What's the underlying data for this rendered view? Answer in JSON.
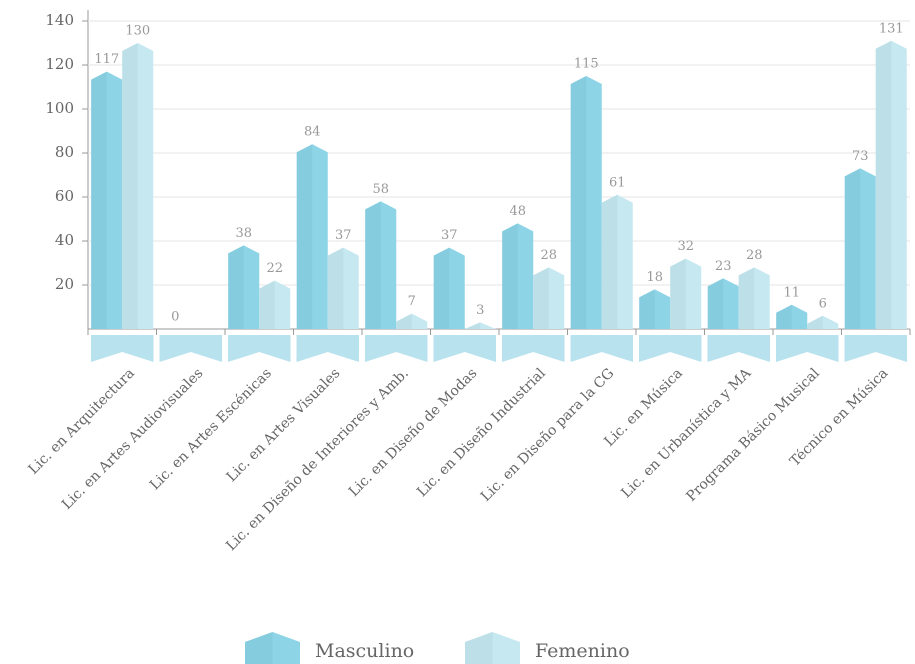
{
  "chart_data": {
    "type": "bar",
    "categories": [
      "Lic. en Arquitectura",
      "Lic. en Artes Audiovisuales",
      "Lic. en Artes Escénicas",
      "Lic. en Artes Visuales",
      "Lic. en Diseño de Interiores y Amb.",
      "Lic. en Diseño de Modas",
      "Lic. en Diseño Industrial",
      "Lic. en Diseño para la CG",
      "Lic. en Música",
      "Lic. en Urbanística y MA",
      "Programa Básico Musical",
      "Técnico en Música"
    ],
    "series": [
      {
        "name": "Masculino",
        "color": "#8dd4e6",
        "values": [
          117,
          0,
          38,
          84,
          58,
          37,
          48,
          115,
          18,
          23,
          11,
          73
        ]
      },
      {
        "name": "Femenino",
        "color": "#c5e8f1",
        "values": [
          130,
          null,
          22,
          37,
          7,
          3,
          28,
          61,
          32,
          28,
          6,
          131
        ]
      }
    ],
    "ylim": [
      0,
      140
    ],
    "yticks": [
      20,
      40,
      60,
      80,
      100,
      120,
      140
    ],
    "grid": true
  }
}
